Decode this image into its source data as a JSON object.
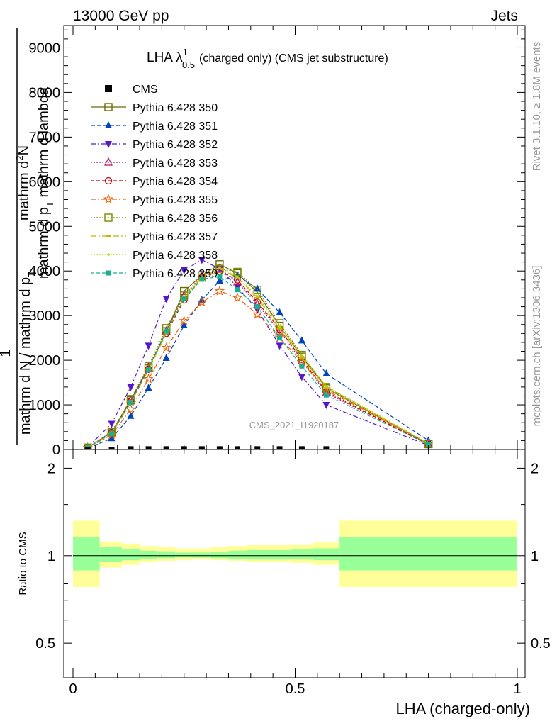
{
  "header": {
    "left": "13000 GeV pp",
    "right": "Jets"
  },
  "side_labels": {
    "rivet": "Rivet 3.1.10, ≥ 1.8M events",
    "mcplots": "mcplots.cern.ch [arXiv:1306.3436]"
  },
  "watermark": "CMS_2021_I1920187",
  "chart_data": [
    {
      "type": "line",
      "title": "LHA λ¹₀.₅ (charged only) (CMS jet substructure)",
      "title_main": "LHA λ",
      "title_sup": "1",
      "title_sub": "0.5",
      "title_rest": "(charged only) (CMS jet substructure)",
      "ylabel": "1 / mathrm d N / mathrm d p_T  mathrm d²N / mathrm d p_T mathrm d lambda",
      "ylabel_parts": {
        "numer_top": "mathrm d",
        "numer_sup": "2",
        "numer_n": "N",
        "numer_bottom": "mathrm d p",
        "numer_bottom_sub": "T",
        "numer_bottom_rest": " mathrm d lambda",
        "one": "1",
        "denom": "mathrm d N / mathrm d p",
        "denom_sub": "T"
      },
      "xlim": [
        0,
        1
      ],
      "ylim": [
        0,
        9500
      ],
      "y_ticks": [
        {
          "v": 0,
          "label": "0"
        },
        {
          "v": 1000,
          "label": "1000"
        },
        {
          "v": 2000,
          "label": "2000"
        },
        {
          "v": 3000,
          "label": "3000"
        },
        {
          "v": 4000,
          "label": "4000"
        },
        {
          "v": 5000,
          "label": "5000"
        },
        {
          "v": 6000,
          "label": "6000"
        },
        {
          "v": 7000,
          "label": "7000"
        },
        {
          "v": 8000,
          "label": "8000"
        },
        {
          "v": 9000,
          "label": "9000"
        }
      ],
      "x": [
        0.033,
        0.087,
        0.13,
        0.17,
        0.21,
        0.25,
        0.29,
        0.33,
        0.37,
        0.415,
        0.465,
        0.515,
        0.57,
        0.8
      ],
      "cms": {
        "name": "CMS",
        "color": "#000000",
        "values": [
          0,
          0,
          10,
          10,
          10,
          10,
          10,
          10,
          10,
          10,
          10,
          10,
          10,
          null
        ]
      },
      "series": [
        {
          "name": "Pythia 6.428 350",
          "color": "#6b6b00",
          "marker": "square-open",
          "dash": "",
          "values": [
            40,
            380,
            1100,
            1820,
            2650,
            3550,
            3900,
            4150,
            3950,
            3520,
            2770,
            2080,
            1370,
            120
          ]
        },
        {
          "name": "Pythia 6.428 351",
          "color": "#0044bb",
          "marker": "triangle-up",
          "dash": "6,3",
          "values": [
            30,
            250,
            750,
            1380,
            2050,
            2780,
            3350,
            3780,
            3900,
            3600,
            3070,
            2440,
            1700,
            200
          ]
        },
        {
          "name": "Pythia 6.428 352",
          "color": "#5518c8",
          "marker": "triangle-down",
          "dash": "7,3,2,3",
          "values": [
            50,
            580,
            1400,
            2330,
            3380,
            4020,
            4250,
            4050,
            3640,
            3130,
            2330,
            1630,
            1000,
            90
          ]
        },
        {
          "name": "Pythia 6.428 353",
          "color": "#b0156c",
          "marker": "triangle-open",
          "dash": "2,2",
          "values": [
            40,
            400,
            1100,
            1850,
            2650,
            3450,
            3900,
            4050,
            3750,
            3250,
            2650,
            1980,
            1270,
            110
          ]
        },
        {
          "name": "Pythia 6.428 354",
          "color": "#cc0000",
          "marker": "circle-open",
          "dash": "5,3",
          "values": [
            40,
            380,
            1080,
            1800,
            2600,
            3350,
            3850,
            4000,
            3800,
            3300,
            2700,
            2020,
            1300,
            110
          ]
        },
        {
          "name": "Pythia 6.428 355",
          "color": "#f06000",
          "marker": "star-open",
          "dash": "7,3,2,3",
          "values": [
            40,
            330,
            900,
            1580,
            2280,
            2880,
            3300,
            3550,
            3400,
            3030,
            2510,
            1960,
            1330,
            130
          ]
        },
        {
          "name": "Pythia 6.428 356",
          "color": "#7a8c00",
          "marker": "square-open",
          "dash": "2,2",
          "values": [
            40,
            390,
            1130,
            1870,
            2720,
            3450,
            3850,
            4050,
            3980,
            3580,
            2830,
            2120,
            1400,
            130
          ]
        },
        {
          "name": "Pythia 6.428 357",
          "color": "#c8b400",
          "marker": "dash",
          "dash": "8,3,2,3",
          "values": [
            40,
            360,
            1050,
            1780,
            2600,
            3400,
            3850,
            4050,
            3850,
            3400,
            2700,
            2050,
            1380,
            130
          ]
        },
        {
          "name": "Pythia 6.428 358",
          "color": "#b8d400",
          "marker": "dot",
          "dash": "2,2",
          "values": [
            40,
            370,
            1070,
            1800,
            2620,
            3400,
            3870,
            4080,
            3870,
            3430,
            2760,
            2100,
            1420,
            140
          ]
        },
        {
          "name": "Pythia 6.428 359",
          "color": "#18b090",
          "marker": "square",
          "dash": "5,3",
          "values": [
            40,
            360,
            1050,
            1800,
            2650,
            3370,
            3820,
            3870,
            3580,
            3200,
            2500,
            1870,
            1220,
            110
          ]
        }
      ]
    },
    {
      "type": "area",
      "ylabel": "Ratio to CMS",
      "xlabel": "LHA (charged-only)",
      "xlim": [
        0,
        1
      ],
      "ylim": [
        0.38,
        2.32
      ],
      "y_scale": "log",
      "y_ticks": [
        {
          "v": 0.5,
          "label": "0.5"
        },
        {
          "v": 1,
          "label": "1"
        },
        {
          "v": 2,
          "label": "2"
        }
      ],
      "x_ticks": [
        {
          "v": 0,
          "label": "0"
        },
        {
          "v": 0.5,
          "label": "0.5"
        },
        {
          "v": 1,
          "label": "1"
        }
      ],
      "bin_edges": [
        0,
        0.06,
        0.11,
        0.15,
        0.19,
        0.23,
        0.27,
        0.31,
        0.35,
        0.39,
        0.44,
        0.49,
        0.54,
        0.6,
        1.0
      ],
      "yellow_band": {
        "color": "#ffff99",
        "lo": [
          0.78,
          0.91,
          0.93,
          0.95,
          0.96,
          0.965,
          0.97,
          0.965,
          0.96,
          0.95,
          0.95,
          0.945,
          0.93,
          0.78
        ],
        "hi": [
          1.32,
          1.12,
          1.1,
          1.08,
          1.07,
          1.06,
          1.06,
          1.07,
          1.08,
          1.09,
          1.09,
          1.095,
          1.11,
          1.32
        ]
      },
      "green_band": {
        "color": "#99ff99",
        "lo": [
          0.89,
          0.95,
          0.965,
          0.975,
          0.98,
          0.985,
          0.985,
          0.98,
          0.975,
          0.97,
          0.97,
          0.97,
          0.965,
          0.89
        ],
        "hi": [
          1.16,
          1.07,
          1.05,
          1.04,
          1.035,
          1.025,
          1.025,
          1.03,
          1.04,
          1.045,
          1.045,
          1.05,
          1.06,
          1.16
        ]
      },
      "reference_line": 1
    }
  ]
}
